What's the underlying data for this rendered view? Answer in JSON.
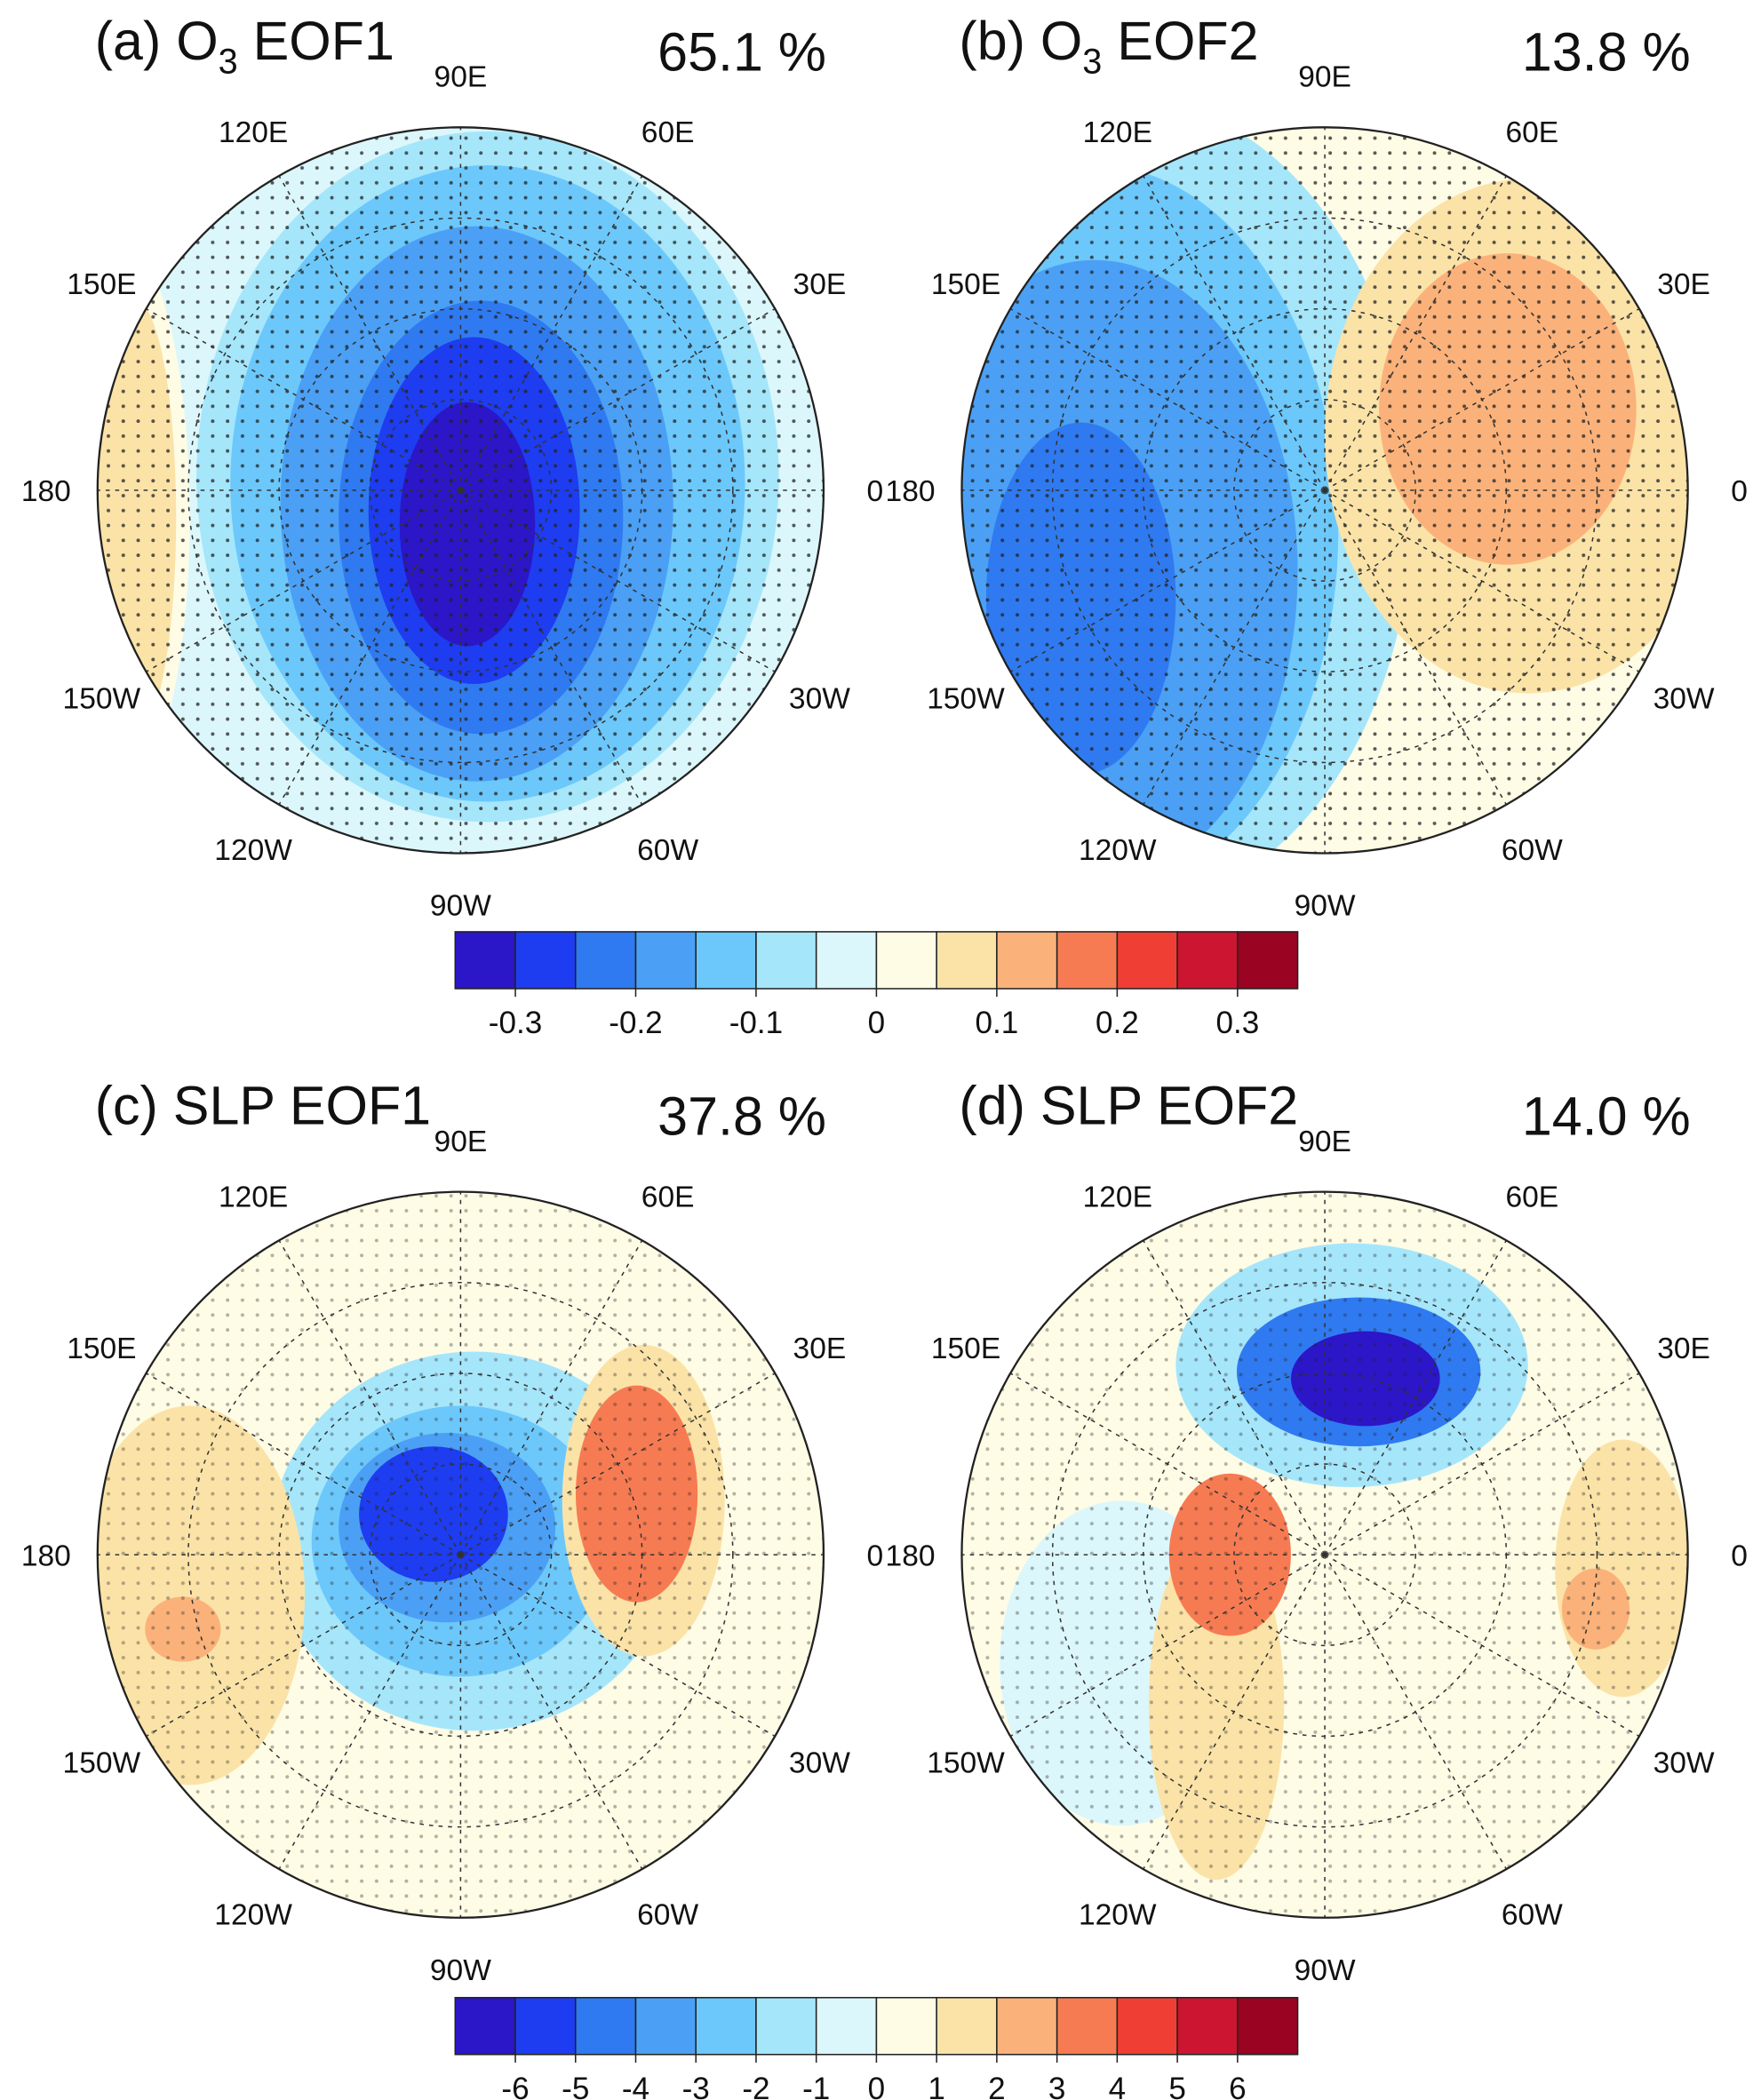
{
  "panels": [
    {
      "title": {
        "text": "(a) O",
        "sub": "3",
        "rest": " EOF1"
      },
      "percent": "65.1 %"
    },
    {
      "title": {
        "text": "(b) O",
        "sub": "3",
        "rest": " EOF2"
      },
      "percent": "13.8 %"
    },
    {
      "title": {
        "text": "(c) SLP EOF1"
      },
      "percent": "37.8 %"
    },
    {
      "title": {
        "text": "(d) SLP EOF2"
      },
      "percent": "14.0 %"
    }
  ],
  "longitude_labels": [
    "0",
    "30E",
    "60E",
    "90E",
    "120E",
    "150E",
    "180",
    "150W",
    "120W",
    "90W",
    "60W",
    "30W"
  ],
  "colorbars": [
    {
      "lim": [
        -0.35,
        0.35
      ],
      "ticks": [
        -0.3,
        -0.2,
        -0.1,
        0,
        0.1,
        0.2,
        0.3
      ],
      "colors": [
        "#2b16c8",
        "#1e3cf0",
        "#2f7af0",
        "#4ba0f5",
        "#6cc8fb",
        "#a6e6fb",
        "#dcf7fb",
        "#fffce6",
        "#fbe3a8",
        "#fbb27a",
        "#f77b52",
        "#ef3f35",
        "#cc1530",
        "#9a0321"
      ]
    },
    {
      "lim": [
        -7,
        7
      ],
      "ticks": [
        -6,
        -5,
        -4,
        -3,
        -2,
        -1,
        0,
        1,
        2,
        3,
        4,
        5,
        6
      ],
      "colors": [
        "#2b16c8",
        "#1e3cf0",
        "#2f7af0",
        "#4ba0f5",
        "#6cc8fb",
        "#a6e6fb",
        "#dcf7fb",
        "#fffce6",
        "#fbe3a8",
        "#fbb27a",
        "#f77b52",
        "#ef3f35",
        "#cc1530",
        "#9a0321"
      ]
    }
  ]
}
